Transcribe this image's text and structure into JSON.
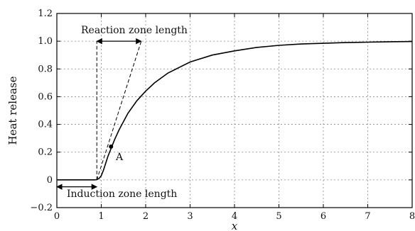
{
  "chart_data": {
    "type": "line",
    "xlabel": "x",
    "ylabel": "Heat release",
    "xlim": [
      0,
      8
    ],
    "ylim": [
      -0.2,
      1.2
    ],
    "xticks": [
      0,
      1,
      2,
      3,
      4,
      5,
      6,
      7,
      8
    ],
    "xtick_labels": [
      "0",
      "1",
      "2",
      "3",
      "4",
      "5",
      "6",
      "7",
      "8"
    ],
    "yticks": [
      -0.2,
      0,
      0.2,
      0.4,
      0.6,
      0.8,
      1.0,
      1.2
    ],
    "ytick_labels": [
      "−0.2",
      "0",
      "0.2",
      "0.4",
      "0.6",
      "0.8",
      "1.0",
      "1.2"
    ],
    "grid": true,
    "series": [
      {
        "color": "#000000",
        "x": [
          0,
          0.5,
          0.85,
          0.9,
          0.95,
          1.0,
          1.05,
          1.1,
          1.15,
          1.2,
          1.25,
          1.3,
          1.4,
          1.5,
          1.6,
          1.8,
          2.0,
          2.2,
          2.5,
          3.0,
          3.5,
          4.0,
          4.5,
          5.0,
          5.5,
          6.0,
          6.5,
          7.0,
          7.5,
          8.0
        ],
        "y": [
          0,
          0,
          0,
          0.002,
          0.01,
          0.03,
          0.07,
          0.12,
          0.17,
          0.21,
          0.25,
          0.29,
          0.36,
          0.42,
          0.48,
          0.57,
          0.64,
          0.7,
          0.77,
          0.85,
          0.9,
          0.93,
          0.955,
          0.97,
          0.98,
          0.985,
          0.99,
          0.993,
          0.996,
          0.998
        ]
      }
    ],
    "tangent_line": {
      "x": [
        0.9,
        1.9
      ],
      "y": [
        0,
        1.0
      ],
      "style": "dashed"
    },
    "vertical_dashed_line": {
      "x": 0.9,
      "y": [
        0,
        1.0
      ]
    },
    "point": {
      "name": "A",
      "x": 1.22,
      "y": 0.24
    },
    "annotations": [
      {
        "text": "Reaction zone length",
        "span": [
          0.9,
          1.9
        ],
        "y": 1.0
      },
      {
        "text": "Induction zone length",
        "span": [
          0,
          0.9
        ],
        "y": -0.05
      }
    ]
  }
}
